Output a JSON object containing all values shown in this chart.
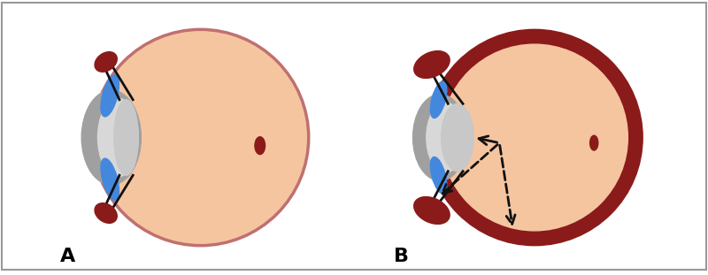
{
  "bg_color": "#ffffff",
  "border_color": "#999999",
  "eye_fill": "#f5c5a0",
  "eye_outline_A": "#c07070",
  "eye_outline_B": "#8b1a1a",
  "choroid_color": "#8b1a1a",
  "cornea_color": "#a0a0a0",
  "cornea_inner_color": "#d8d8d8",
  "iris_color": "#4488dd",
  "zonule_color": "#111111",
  "lens_color": "#c8c8c8",
  "macula_color": "#8b1a1a",
  "arrow_color": "#111111",
  "label_A": "A",
  "label_B": "B",
  "fig_width": 8.0,
  "fig_height": 3.11
}
